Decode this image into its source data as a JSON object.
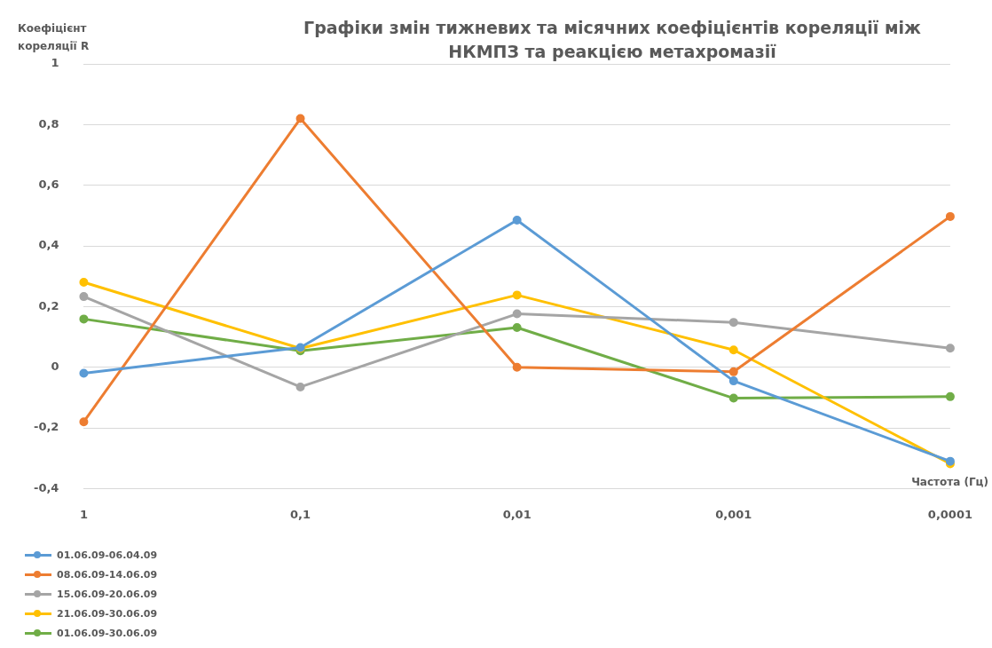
{
  "chart_data": {
    "type": "line",
    "title": "Графіки змін тижневих та місячних коефіцієнтів кореляції між НКМПЗ та реакцією метахромазії",
    "xlabel": "Частота (Гц)",
    "ylabel": "Коефіцієнт кореляції R",
    "categories": [
      "1",
      "0,1",
      "0,01",
      "0,001",
      "0,0001"
    ],
    "series": [
      {
        "name": "01.06.09-06.04.09",
        "color": "#5b9bd5",
        "values": [
          -0.02,
          0.065,
          0.485,
          -0.045,
          -0.31
        ]
      },
      {
        "name": "08.06.09-14.06.09",
        "color": "#ed7d31",
        "values": [
          -0.18,
          0.82,
          0,
          -0.015,
          0.497
        ]
      },
      {
        "name": "15.06.09-20.06.09",
        "color": "#a5a5a5",
        "values": [
          0.233,
          -0.065,
          0.176,
          0.148,
          0.063
        ]
      },
      {
        "name": "21.06.09-30.06.09",
        "color": "#ffc000",
        "values": [
          0.28,
          0.062,
          0.238,
          0.057,
          -0.318
        ]
      },
      {
        "name": "01.06.09-30.06.09",
        "color": "#70ad47",
        "values": [
          0.159,
          0.054,
          0.131,
          -0.102,
          -0.097
        ]
      }
    ],
    "ylim": [
      -0.4,
      1
    ],
    "yticks": [
      {
        "value": -0.4,
        "label": "-0,4"
      },
      {
        "value": -0.2,
        "label": "-0,2"
      },
      0,
      {
        "value": 0.2,
        "label": "0,2"
      },
      {
        "value": 0.4,
        "label": "0,4"
      },
      {
        "value": 0.6,
        "label": "0,6"
      },
      {
        "value": 0.8,
        "label": "0,8"
      },
      1
    ],
    "grid": "y",
    "legend": "bottom left",
    "marker": "circle",
    "line_style": "solid"
  }
}
